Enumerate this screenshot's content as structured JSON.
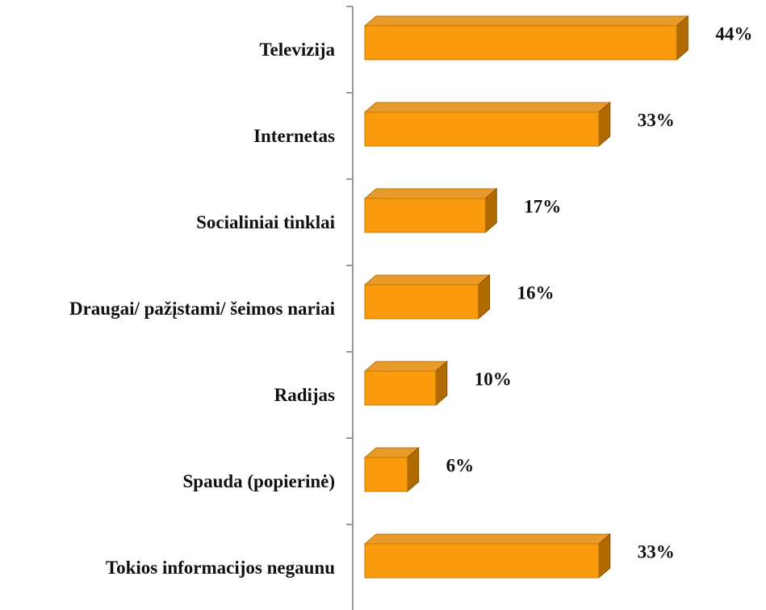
{
  "chart_data": {
    "type": "bar",
    "orientation": "horizontal",
    "color": "#f99b0c",
    "categories": [
      "Televizija",
      "Internetas",
      "Socialiniai tinklai",
      "Draugai/ pažįstami/ šeimos nariai",
      "Radijas",
      "Spauda (popierinė)",
      "Tokios informacijos negaunu"
    ],
    "values": [
      44,
      33,
      17,
      16,
      10,
      6,
      33
    ],
    "value_labels": [
      "44%",
      "33%",
      "17%",
      "16%",
      "10%",
      "6%",
      "33%"
    ]
  }
}
